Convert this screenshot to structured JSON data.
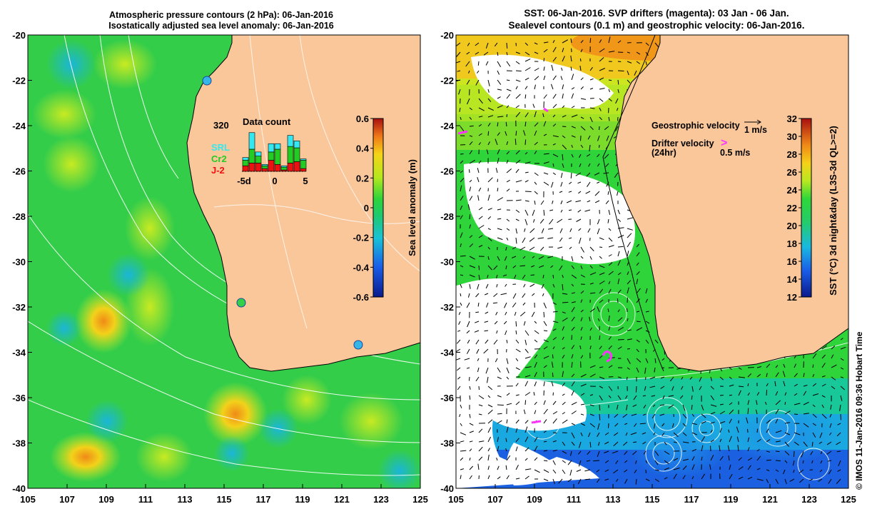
{
  "left_panel": {
    "title_line1": "Atmospheric pressure contours (2 hPa): 06-Jan-2016",
    "title_line2": "Isostatically adjusted sea level anomaly: 06-Jan-2016",
    "y_ticks": [
      "-20",
      "-22",
      "-24",
      "-26",
      "-28",
      "-30",
      "-32",
      "-34",
      "-36",
      "-38",
      "-40"
    ],
    "x_ticks": [
      "105",
      "107",
      "109",
      "111",
      "113",
      "115",
      "117",
      "119",
      "121",
      "123",
      "125"
    ],
    "inset": {
      "max_label": "320",
      "title": "Data count",
      "legend": [
        {
          "label": "SRL",
          "color": "#33e8f0"
        },
        {
          "label": "Cr2",
          "color": "#22cc22"
        },
        {
          "label": "J-2",
          "color": "#ee1111"
        }
      ],
      "x_ticks": [
        "-5d",
        "0",
        "5"
      ],
      "days": [
        {
          "red": 40,
          "green": 40,
          "cyan": 20
        },
        {
          "red": 60,
          "green": 100,
          "cyan": 120
        },
        {
          "red": 60,
          "green": 50,
          "cyan": 30
        },
        {
          "red": 20,
          "green": 20,
          "cyan": 10
        },
        {
          "red": 80,
          "green": 60,
          "cyan": 60
        },
        {
          "red": 50,
          "green": 110,
          "cyan": 40
        },
        {
          "red": 10,
          "green": 20,
          "cyan": 10
        },
        {
          "red": 60,
          "green": 120,
          "cyan": 80
        },
        {
          "red": 70,
          "green": 100,
          "cyan": 50
        },
        {
          "red": 20,
          "green": 60,
          "cyan": 10
        }
      ]
    },
    "colorbar": {
      "label": "Sea level anomaly (m)",
      "ticks": [
        "0.6",
        "0.4",
        "0.2",
        "0",
        "-0.2",
        "-0.4",
        "-0.6"
      ],
      "range": [
        -0.6,
        0.6
      ]
    }
  },
  "right_panel": {
    "title_line1": "SST: 06-Jan-2016. SVP drifters (magenta): 03 Jan - 06 Jan.",
    "title_line2": "Sealevel contours (0.1 m) and geostrophic velocity: 06-Jan-2016.",
    "y_ticks": [
      "-20",
      "-22",
      "-24",
      "-26",
      "-28",
      "-30",
      "-32",
      "-34",
      "-36",
      "-38",
      "-40"
    ],
    "x_ticks": [
      "105",
      "107",
      "109",
      "111",
      "113",
      "115",
      "117",
      "119",
      "121",
      "123",
      "125"
    ],
    "legend": {
      "geo_label": "Geostrophic velocity",
      "geo_value": "1 m/s",
      "drifter_label": "Drifter velocity",
      "drifter_sub": "(24hr)",
      "drifter_symbol": ">",
      "drifter_value": "0.5 m/s"
    },
    "colorbar": {
      "label": "SST (°C) 3d night&day (L3S-3d QL>=2)",
      "ticks": [
        "32",
        "30",
        "28",
        "26",
        "24",
        "22",
        "20",
        "18",
        "16",
        "14",
        "12"
      ],
      "range": [
        12,
        32
      ]
    }
  },
  "credit": "© IMOS 11-Jan-2016 09:36 Hobart Time",
  "colors": {
    "land": "#fac79b",
    "coast": "#000000",
    "drifter": "#ff33ff",
    "contour": "#ffffff"
  }
}
